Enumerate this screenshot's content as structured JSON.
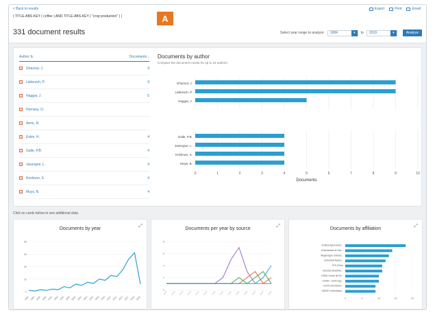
{
  "header": {
    "back_link": "< Back to results",
    "query": "( TITLE-ABS-KEY ( coffee ) AND TITLE-ABS-KEY ( \"crop production\" ) )",
    "badge": "A",
    "export_label": "Export",
    "print_label": "Print",
    "email_label": "Email",
    "results_count": "331 document results",
    "year_range_label": "Select year range to analyze:",
    "year_from": "1984",
    "year_to_label": "to",
    "year_to": "2019",
    "analyze_label": "Analyze"
  },
  "author_list": {
    "col_author": "Author ⇅",
    "col_documents": "Documents ↓",
    "items": [
      {
        "name": "Ghazoul, J.",
        "count": "9"
      },
      {
        "name": "Läderach, P.",
        "count": "9"
      },
      {
        "name": "Haggar, J.",
        "count": "5"
      },
      {
        "name": "Hornsey, O.",
        "count": ""
      },
      {
        "name": "Aerts, R.",
        "count": ""
      },
      {
        "name": "Eskin, H.",
        "count": "4"
      },
      {
        "name": "Galle, P.B.",
        "count": "4"
      },
      {
        "name": "Jassogne, L.",
        "count": "4"
      },
      {
        "name": "Krishnan, S.",
        "count": "4"
      },
      {
        "name": "Muys, B.",
        "count": "4"
      }
    ]
  },
  "author_chart": {
    "title": "Documents by author",
    "subtitle": "Compare the document counts for up to 15 authors.",
    "xlabel": "Documents",
    "ticks": [
      "0",
      "1",
      "2",
      "3",
      "4",
      "5",
      "6",
      "7",
      "8",
      "9",
      "10"
    ]
  },
  "chart_data": [
    {
      "type": "bar",
      "orientation": "horizontal",
      "title": "Documents by author",
      "xlabel": "Documents",
      "xlim": [
        0,
        10
      ],
      "categories": [
        "Ghazoul, J.",
        "Läderach, P.",
        "Haggar, J.",
        "Galle, P.B.",
        "Jassogne, L.",
        "Krishnan, S.",
        "Muys, B."
      ],
      "values": [
        9,
        9,
        5,
        4,
        4,
        4,
        4
      ]
    },
    {
      "type": "line",
      "title": "Documents by year",
      "x": [
        1984,
        1986,
        1988,
        1990,
        1992,
        1994,
        1996,
        1998,
        2000,
        2002,
        2004,
        2006,
        2008,
        2010,
        2012,
        2014,
        2016,
        2017,
        2018,
        2019
      ],
      "values": [
        2,
        1,
        3,
        2,
        4,
        3,
        8,
        6,
        12,
        10,
        15,
        13,
        20,
        18,
        26,
        24,
        35,
        52,
        62,
        12
      ],
      "ylim": [
        0,
        80
      ]
    },
    {
      "type": "line",
      "title": "Documents per year by source",
      "ylim": [
        0,
        8
      ],
      "series": [
        {
          "values": [
            1,
            1,
            1,
            1,
            1,
            1,
            1,
            2,
            5,
            7,
            3,
            1,
            1,
            1
          ]
        },
        {
          "values": [
            1,
            1,
            1,
            1,
            1,
            1,
            1,
            1,
            1,
            1,
            2,
            3,
            1,
            2
          ]
        },
        {
          "values": [
            1,
            1,
            1,
            1,
            1,
            1,
            1,
            1,
            1,
            2,
            1,
            2,
            3,
            1
          ]
        },
        {
          "values": [
            1,
            1,
            1,
            1,
            1,
            1,
            1,
            1,
            1,
            1,
            1,
            1,
            2,
            4
          ]
        }
      ]
    },
    {
      "type": "bar",
      "orientation": "horizontal",
      "title": "Documents by affiliation",
      "xlim": [
        0,
        20
      ],
      "categories": [
        "Institute Agronomico...",
        "Universidade de Sao...",
        "Wageningen Universi...",
        "Universitat Natura...",
        "ETH Zürich",
        "Empresa Brasileira...",
        "CIRAD Centre de Re...",
        "CGIAR - Centro Agr...",
        "Centro Internacion...",
        "UNESP-Universidad..."
      ],
      "values": [
        18,
        14,
        13,
        12,
        11,
        11,
        10,
        10,
        9,
        9
      ]
    }
  ],
  "cards": {
    "hint": "Click on cards below to see additional data.",
    "year_title": "Documents by year",
    "source_title": "Documents per year by source",
    "affiliation_title": "Documents by affiliation",
    "expand_icon": "⤢"
  },
  "colors": {
    "accent": "#2e7ab8",
    "bar": "#2a9fd0",
    "badge": "#e87722",
    "source_series": [
      "#9a6bbf",
      "#e0663a",
      "#3aa655",
      "#2a9fd0"
    ]
  }
}
